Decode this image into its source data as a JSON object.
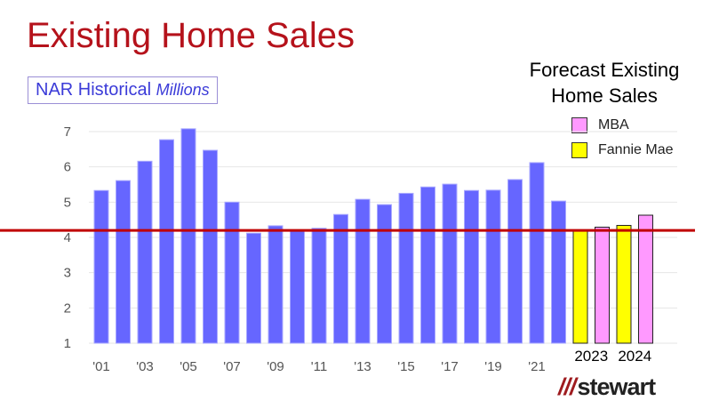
{
  "chart_data": {
    "type": "bar",
    "title": "Existing Home Sales",
    "subtitle": "NAR Historical",
    "units": "Millions",
    "ylim": [
      1,
      7
    ],
    "yticks": [
      1,
      2,
      3,
      4,
      5,
      6,
      7
    ],
    "grid": true,
    "historical": {
      "name": "NAR Historical",
      "color": "#6666ff",
      "years": [
        "2001",
        "2002",
        "2003",
        "2004",
        "2005",
        "2006",
        "2007",
        "2008",
        "2009",
        "2010",
        "2011",
        "2012",
        "2013",
        "2014",
        "2015",
        "2016",
        "2017",
        "2018",
        "2019",
        "2020",
        "2021",
        "2022"
      ],
      "values": [
        5.33,
        5.61,
        6.16,
        6.77,
        7.08,
        6.47,
        5.0,
        4.12,
        4.33,
        4.19,
        4.26,
        4.65,
        5.08,
        4.93,
        5.25,
        5.43,
        5.51,
        5.33,
        5.34,
        5.64,
        6.12,
        5.03
      ]
    },
    "xtick_labels": [
      "'01",
      "'03",
      "'05",
      "'07",
      "'09",
      "'11",
      "'13",
      "'15",
      "'17",
      "'19",
      "'21"
    ],
    "forecast": {
      "title": "Forecast Existing Home Sales",
      "title_line1": "Forecast Existing",
      "title_line2": "Home Sales",
      "groups": [
        "2023",
        "2024"
      ],
      "series": [
        {
          "name": "Fannie Mae",
          "color": "#ffff00",
          "values": [
            4.2,
            4.34
          ]
        },
        {
          "name": "MBA",
          "color": "#ff99ff",
          "values": [
            4.29,
            4.63
          ]
        }
      ]
    },
    "reference_line": {
      "value": 4.2,
      "color": "#c00000"
    },
    "legend_position": "top-right"
  },
  "branding": {
    "logo": "stewart"
  }
}
